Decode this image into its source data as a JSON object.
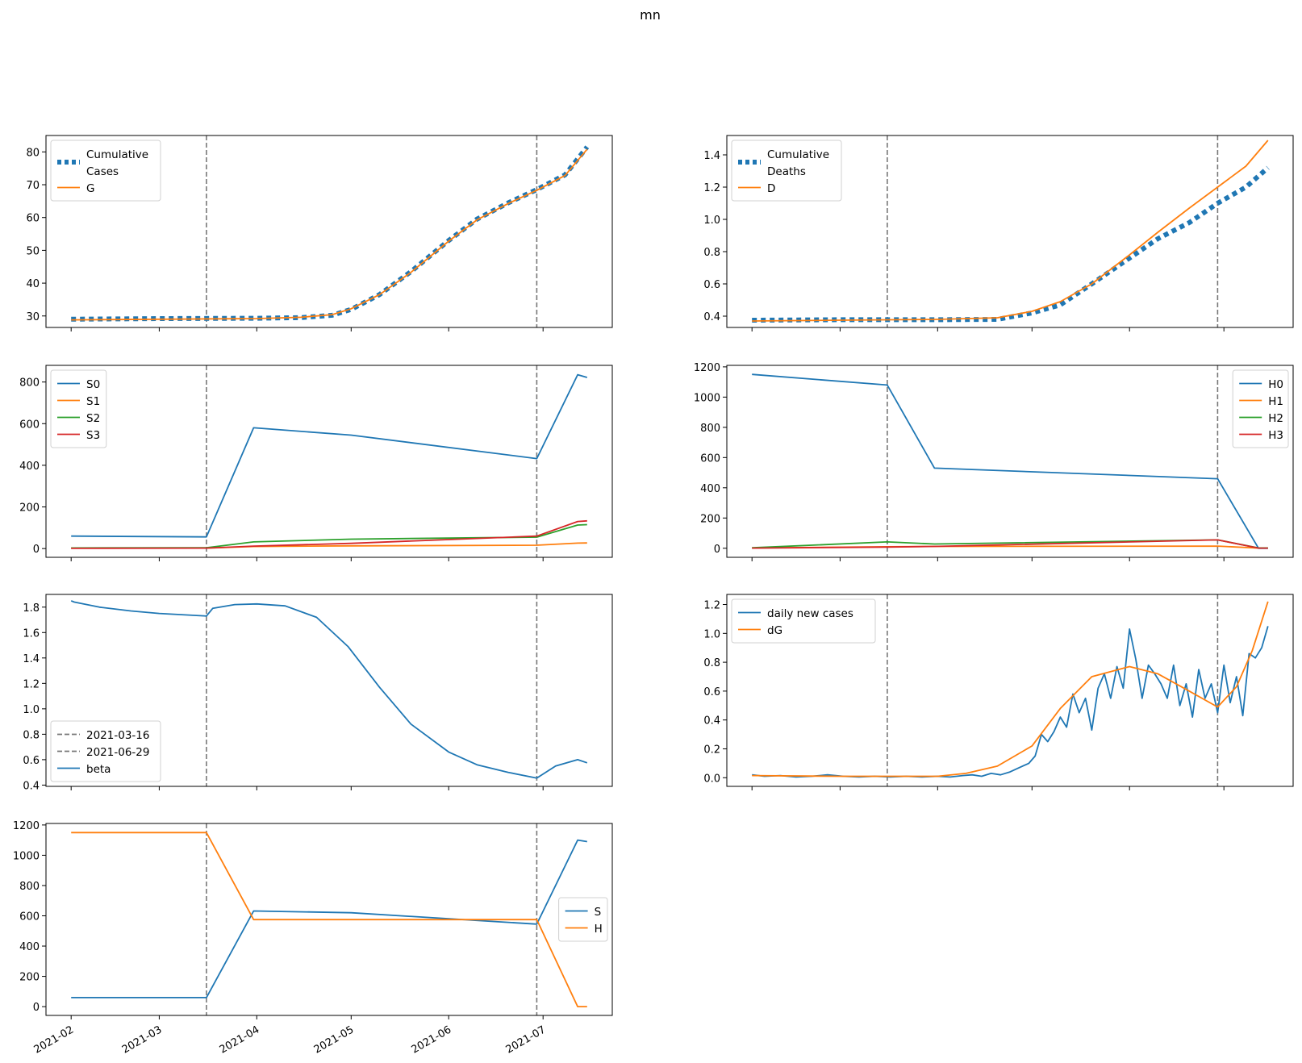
{
  "figure": {
    "title": "mn"
  },
  "colors": {
    "blue": "#1f77b4",
    "orange": "#ff7f0e",
    "green": "#2ca02c",
    "red": "#d62728",
    "vline": "#777777"
  },
  "x_ticks": [
    "2021-02",
    "2021-03",
    "2021-04",
    "2021-05",
    "2021-06",
    "2021-07"
  ],
  "x_tick_dates": [
    "2021-02-01",
    "2021-03-01",
    "2021-04-01",
    "2021-05-01",
    "2021-06-01",
    "2021-07-01"
  ],
  "x_range": [
    "2021-01-24",
    "2021-07-23"
  ],
  "vlines": [
    "2021-03-16",
    "2021-06-29"
  ],
  "chart_data": [
    {
      "type": "line",
      "panel": "cases",
      "ylim": [
        26.5,
        85
      ],
      "yticks": [
        30,
        40,
        50,
        60,
        70,
        80
      ],
      "legend_pos": "top-left",
      "show_xticklabels": false,
      "series": [
        {
          "name": "Cumulative\nCases",
          "color": "blue",
          "style": "dotted",
          "x": [
            "2021-02-01",
            "2021-03-01",
            "2021-04-01",
            "2021-04-15",
            "2021-04-25",
            "2021-05-01",
            "2021-05-10",
            "2021-05-20",
            "2021-06-01",
            "2021-06-10",
            "2021-06-20",
            "2021-06-29",
            "2021-07-08",
            "2021-07-15"
          ],
          "values": [
            29,
            29.2,
            29.3,
            29.5,
            30.2,
            32,
            36.5,
            43.5,
            53,
            59.5,
            64.5,
            68.5,
            73,
            81.5
          ]
        },
        {
          "name": "G",
          "color": "orange",
          "style": "solid",
          "x": [
            "2021-02-01",
            "2021-03-01",
            "2021-04-01",
            "2021-04-15",
            "2021-04-25",
            "2021-05-01",
            "2021-05-10",
            "2021-05-20",
            "2021-06-01",
            "2021-06-10",
            "2021-06-20",
            "2021-06-29",
            "2021-07-08",
            "2021-07-15"
          ],
          "values": [
            28.8,
            29,
            29.2,
            29.6,
            30.4,
            32.2,
            36.5,
            43.3,
            52.8,
            59.3,
            64.3,
            68.3,
            72.8,
            80.8
          ]
        }
      ]
    },
    {
      "type": "line",
      "panel": "deaths",
      "ylim": [
        0.33,
        1.52
      ],
      "yticks": [
        0.4,
        0.6,
        0.8,
        1.0,
        1.2,
        1.4
      ],
      "ytick_labels": [
        "0.4",
        "0.6",
        "0.8",
        "1.0",
        "1.2",
        "1.4"
      ],
      "legend_pos": "top-left",
      "show_xticklabels": false,
      "series": [
        {
          "name": "Cumulative\nDeaths",
          "color": "blue",
          "style": "dotted",
          "x": [
            "2021-02-01",
            "2021-03-01",
            "2021-04-01",
            "2021-04-20",
            "2021-05-01",
            "2021-05-10",
            "2021-05-20",
            "2021-06-01",
            "2021-06-10",
            "2021-06-20",
            "2021-06-29",
            "2021-07-08",
            "2021-07-15"
          ],
          "values": [
            0.375,
            0.378,
            0.378,
            0.38,
            0.42,
            0.47,
            0.6,
            0.76,
            0.88,
            0.98,
            1.1,
            1.2,
            1.32
          ]
        },
        {
          "name": "D",
          "color": "orange",
          "style": "solid",
          "x": [
            "2021-02-01",
            "2021-03-01",
            "2021-04-01",
            "2021-04-20",
            "2021-05-01",
            "2021-05-10",
            "2021-05-20",
            "2021-06-01",
            "2021-06-10",
            "2021-06-20",
            "2021-06-29",
            "2021-07-08",
            "2021-07-15"
          ],
          "values": [
            0.37,
            0.375,
            0.38,
            0.39,
            0.43,
            0.49,
            0.6,
            0.78,
            0.92,
            1.07,
            1.2,
            1.33,
            1.49
          ]
        }
      ]
    },
    {
      "type": "line",
      "panel": "S-groups",
      "ylim": [
        -42,
        880
      ],
      "yticks": [
        0,
        200,
        400,
        600,
        800
      ],
      "legend_pos": "top-left",
      "show_xticklabels": false,
      "series": [
        {
          "name": "S0",
          "color": "blue",
          "x": [
            "2021-02-01",
            "2021-03-16",
            "2021-03-31",
            "2021-05-01",
            "2021-06-29",
            "2021-07-12",
            "2021-07-15"
          ],
          "values": [
            60,
            56,
            580,
            545,
            432,
            835,
            822
          ]
        },
        {
          "name": "S1",
          "color": "orange",
          "x": [
            "2021-02-01",
            "2021-03-16",
            "2021-03-31",
            "2021-05-01",
            "2021-06-29",
            "2021-07-12",
            "2021-07-15"
          ],
          "values": [
            2,
            2,
            10,
            13,
            16,
            26,
            27
          ]
        },
        {
          "name": "S2",
          "color": "green",
          "x": [
            "2021-02-01",
            "2021-03-16",
            "2021-03-31",
            "2021-05-01",
            "2021-06-29",
            "2021-07-12",
            "2021-07-15"
          ],
          "values": [
            3,
            4,
            32,
            45,
            55,
            113,
            115
          ]
        },
        {
          "name": "S3",
          "color": "red",
          "x": [
            "2021-02-01",
            "2021-03-16",
            "2021-03-31",
            "2021-05-01",
            "2021-06-29",
            "2021-07-12",
            "2021-07-15"
          ],
          "values": [
            1,
            2,
            12,
            25,
            60,
            130,
            133
          ]
        }
      ]
    },
    {
      "type": "line",
      "panel": "H-groups",
      "ylim": [
        -60,
        1210
      ],
      "yticks": [
        0,
        200,
        400,
        600,
        800,
        1000,
        1200
      ],
      "legend_pos": "top-right",
      "show_xticklabels": false,
      "series": [
        {
          "name": "H0",
          "color": "blue",
          "x": [
            "2021-02-01",
            "2021-03-16",
            "2021-03-31",
            "2021-06-29",
            "2021-07-12",
            "2021-07-15"
          ],
          "values": [
            1150,
            1080,
            530,
            460,
            0,
            0
          ]
        },
        {
          "name": "H1",
          "color": "orange",
          "x": [
            "2021-02-01",
            "2021-03-16",
            "2021-03-31",
            "2021-06-29",
            "2021-07-12",
            "2021-07-15"
          ],
          "values": [
            2,
            10,
            12,
            14,
            1,
            1
          ]
        },
        {
          "name": "H2",
          "color": "green",
          "x": [
            "2021-02-01",
            "2021-03-16",
            "2021-03-31",
            "2021-06-29",
            "2021-07-12",
            "2021-07-15"
          ],
          "values": [
            3,
            42,
            28,
            55,
            2,
            2
          ]
        },
        {
          "name": "H3",
          "color": "red",
          "x": [
            "2021-02-01",
            "2021-03-16",
            "2021-03-31",
            "2021-06-29",
            "2021-07-12",
            "2021-07-15"
          ],
          "values": [
            1,
            8,
            12,
            55,
            1,
            1
          ]
        }
      ]
    },
    {
      "type": "line",
      "panel": "beta",
      "ylim": [
        0.39,
        1.9
      ],
      "yticks": [
        0.4,
        0.6,
        0.8,
        1.0,
        1.2,
        1.4,
        1.6,
        1.8
      ],
      "ytick_labels": [
        "0.4",
        "0.6",
        "0.8",
        "1.0",
        "1.2",
        "1.4",
        "1.6",
        "1.8"
      ],
      "legend_pos": "bottom-left",
      "show_xticklabels": false,
      "legend_vlines": [
        "2021-03-16",
        "2021-06-29"
      ],
      "series": [
        {
          "name": "beta",
          "color": "blue",
          "x": [
            "2021-02-01",
            "2021-02-02",
            "2021-02-10",
            "2021-02-20",
            "2021-03-01",
            "2021-03-16",
            "2021-03-18",
            "2021-03-25",
            "2021-04-01",
            "2021-04-10",
            "2021-04-20",
            "2021-04-30",
            "2021-05-10",
            "2021-05-20",
            "2021-06-01",
            "2021-06-10",
            "2021-06-20",
            "2021-06-29",
            "2021-07-05",
            "2021-07-12",
            "2021-07-15"
          ],
          "values": [
            1.85,
            1.84,
            1.8,
            1.77,
            1.75,
            1.73,
            1.79,
            1.82,
            1.825,
            1.81,
            1.72,
            1.49,
            1.17,
            0.88,
            0.66,
            0.56,
            0.5,
            0.455,
            0.55,
            0.6,
            0.575
          ]
        }
      ]
    },
    {
      "type": "line",
      "panel": "daily",
      "ylim": [
        -0.06,
        1.27
      ],
      "yticks": [
        0.0,
        0.2,
        0.4,
        0.6,
        0.8,
        1.0,
        1.2
      ],
      "ytick_labels": [
        "0.0",
        "0.2",
        "0.4",
        "0.6",
        "0.8",
        "1.0",
        "1.2"
      ],
      "legend_pos": "top-left",
      "show_xticklabels": false,
      "series": [
        {
          "name": "daily new cases",
          "color": "blue",
          "x": [
            "2021-02-01",
            "2021-02-05",
            "2021-02-10",
            "2021-02-15",
            "2021-02-20",
            "2021-02-25",
            "2021-03-02",
            "2021-03-07",
            "2021-03-12",
            "2021-03-17",
            "2021-03-22",
            "2021-03-27",
            "2021-04-01",
            "2021-04-05",
            "2021-04-09",
            "2021-04-12",
            "2021-04-15",
            "2021-04-18",
            "2021-04-21",
            "2021-04-24",
            "2021-04-27",
            "2021-04-30",
            "2021-05-02",
            "2021-05-04",
            "2021-05-06",
            "2021-05-08",
            "2021-05-10",
            "2021-05-12",
            "2021-05-14",
            "2021-05-16",
            "2021-05-18",
            "2021-05-20",
            "2021-05-22",
            "2021-05-24",
            "2021-05-26",
            "2021-05-28",
            "2021-05-30",
            "2021-06-01",
            "2021-06-03",
            "2021-06-05",
            "2021-06-07",
            "2021-06-09",
            "2021-06-11",
            "2021-06-13",
            "2021-06-15",
            "2021-06-17",
            "2021-06-19",
            "2021-06-21",
            "2021-06-23",
            "2021-06-25",
            "2021-06-27",
            "2021-06-29",
            "2021-07-01",
            "2021-07-03",
            "2021-07-05",
            "2021-07-07",
            "2021-07-09",
            "2021-07-11",
            "2021-07-13",
            "2021-07-15"
          ],
          "values": [
            0.02,
            0.01,
            0.015,
            0.005,
            0.01,
            0.02,
            0.01,
            0.005,
            0.01,
            0.005,
            0.01,
            0.005,
            0.01,
            0.005,
            0.015,
            0.02,
            0.01,
            0.03,
            0.02,
            0.04,
            0.07,
            0.1,
            0.15,
            0.3,
            0.25,
            0.32,
            0.42,
            0.35,
            0.58,
            0.45,
            0.55,
            0.33,
            0.62,
            0.72,
            0.55,
            0.77,
            0.62,
            1.03,
            0.82,
            0.55,
            0.78,
            0.72,
            0.65,
            0.55,
            0.78,
            0.5,
            0.65,
            0.42,
            0.75,
            0.55,
            0.65,
            0.45,
            0.78,
            0.52,
            0.7,
            0.43,
            0.86,
            0.83,
            0.9,
            1.05
          ]
        },
        {
          "name": "dG",
          "color": "orange",
          "x": [
            "2021-02-01",
            "2021-03-01",
            "2021-04-01",
            "2021-04-10",
            "2021-04-20",
            "2021-05-01",
            "2021-05-10",
            "2021-05-20",
            "2021-06-01",
            "2021-06-10",
            "2021-06-20",
            "2021-06-29",
            "2021-07-05",
            "2021-07-10",
            "2021-07-15"
          ],
          "values": [
            0.015,
            0.01,
            0.01,
            0.03,
            0.08,
            0.22,
            0.48,
            0.7,
            0.77,
            0.72,
            0.6,
            0.49,
            0.63,
            0.88,
            1.22
          ]
        }
      ]
    },
    {
      "type": "line",
      "panel": "S-H",
      "ylim": [
        -58,
        1210
      ],
      "yticks": [
        0,
        200,
        400,
        600,
        800,
        1000,
        1200
      ],
      "legend_pos": "center-right",
      "show_xticklabels": true,
      "series": [
        {
          "name": "S",
          "color": "blue",
          "x": [
            "2021-02-01",
            "2021-03-16",
            "2021-03-31",
            "2021-05-01",
            "2021-06-29",
            "2021-07-12",
            "2021-07-15"
          ],
          "values": [
            60,
            60,
            632,
            620,
            545,
            1100,
            1090
          ]
        },
        {
          "name": "H",
          "color": "orange",
          "x": [
            "2021-02-01",
            "2021-03-16",
            "2021-03-31",
            "2021-05-01",
            "2021-06-29",
            "2021-07-12",
            "2021-07-15"
          ],
          "values": [
            1150,
            1150,
            575,
            575,
            575,
            0,
            0
          ]
        }
      ]
    }
  ]
}
